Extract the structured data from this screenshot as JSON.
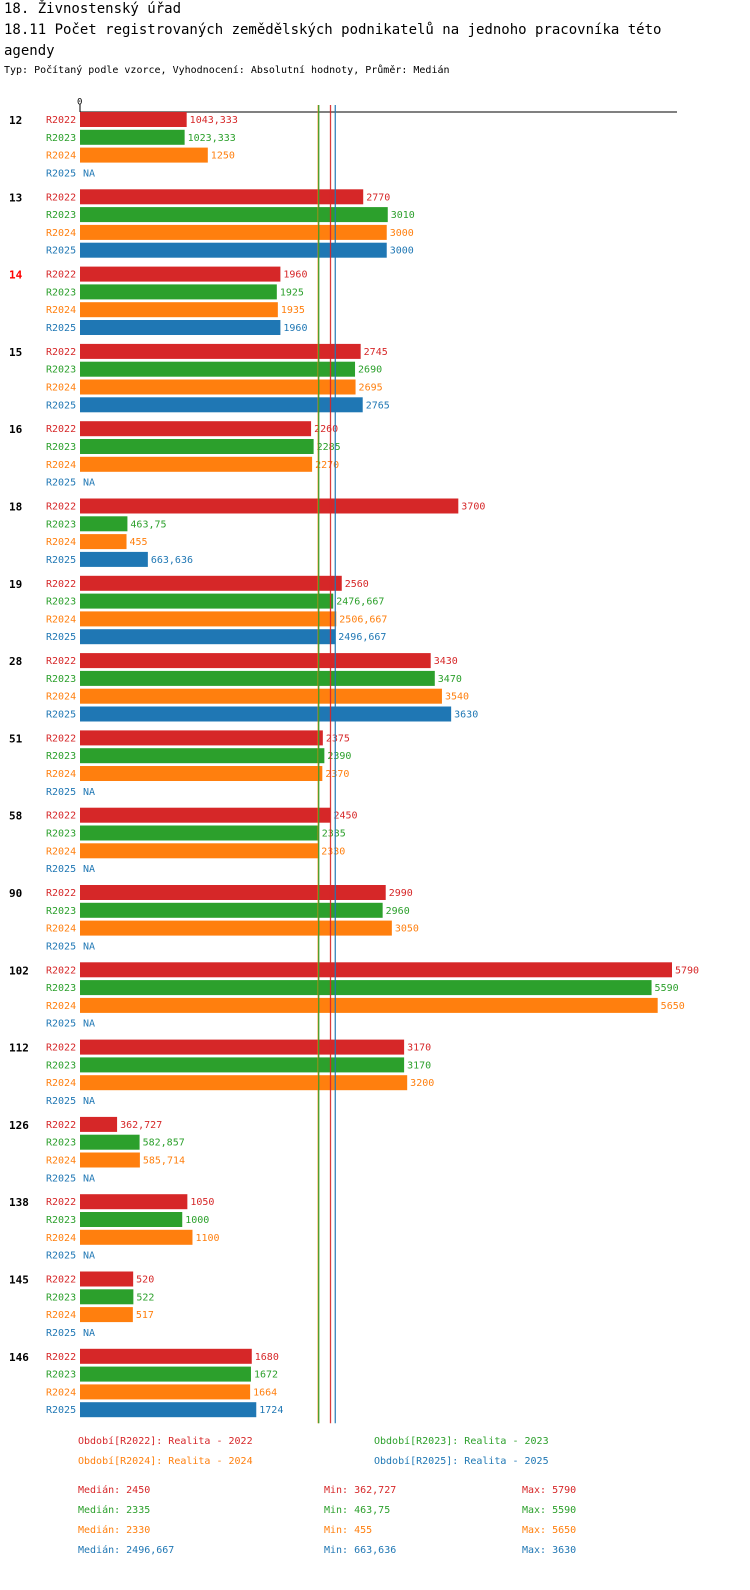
{
  "header": {
    "title_line1": "18. Živnostenský úřad",
    "title_line2": "18.11 Počet  registrovaných zemědělských podnikatelů na jednoho pracovníka  této",
    "title_line3": "agendy",
    "subtitle": "Typ: Počítaný podle vzorce, Vyhodnocení: Absolutní hodnoty, Průměr: Medián"
  },
  "colors": {
    "R2022": "#d62728",
    "R2023": "#2ca02c",
    "R2024": "#ff7f0e",
    "R2025": "#1f77b4",
    "highlight": "#ff0000",
    "text": "#000000"
  },
  "chart_data": {
    "type": "bar",
    "orientation": "horizontal",
    "title": "18.11 Počet  registrovaných zemědělských podnikatelů na jednoho pracovníka  této agendy",
    "axis_zero_label": "0",
    "xlim": [
      0,
      5900
    ],
    "na_label": "NA",
    "highlight_category": "14",
    "categories": [
      "12",
      "13",
      "14",
      "15",
      "16",
      "18",
      "19",
      "28",
      "51",
      "58",
      "90",
      "102",
      "112",
      "126",
      "138",
      "145",
      "146"
    ],
    "series": [
      {
        "name": "R2022",
        "values": [
          1043.333,
          2770,
          1960,
          2745,
          2260,
          3700,
          2560,
          3430,
          2375,
          2450,
          2990,
          5790,
          3170,
          362.727,
          1050,
          520,
          1680
        ],
        "labels": [
          "1043,333",
          "2770",
          "1960",
          "2745",
          "2260",
          "3700",
          "2560",
          "3430",
          "2375",
          "2450",
          "2990",
          "5790",
          "3170",
          "362,727",
          "1050",
          "520",
          "1680"
        ]
      },
      {
        "name": "R2023",
        "values": [
          1023.333,
          3010,
          1925,
          2690,
          2285,
          463.75,
          2476.667,
          3470,
          2390,
          2335,
          2960,
          5590,
          3170,
          582.857,
          1000,
          522,
          1672
        ],
        "labels": [
          "1023,333",
          "3010",
          "1925",
          "2690",
          "2285",
          "463,75",
          "2476,667",
          "3470",
          "2390",
          "2335",
          "2960",
          "5590",
          "3170",
          "582,857",
          "1000",
          "522",
          "1672"
        ]
      },
      {
        "name": "R2024",
        "values": [
          1250,
          3000,
          1935,
          2695,
          2270,
          455,
          2506.667,
          3540,
          2370,
          2330,
          3050,
          5650,
          3200,
          585.714,
          1100,
          517,
          1664
        ],
        "labels": [
          "1250",
          "3000",
          "1935",
          "2695",
          "2270",
          "455",
          "2506,667",
          "3540",
          "2370",
          "2330",
          "3050",
          "5650",
          "3200",
          "585,714",
          "1100",
          "517",
          "1664"
        ]
      },
      {
        "name": "R2025",
        "values": [
          null,
          3000,
          1960,
          2765,
          null,
          663.636,
          2496.667,
          3630,
          null,
          null,
          null,
          null,
          null,
          null,
          null,
          null,
          1724
        ],
        "labels": [
          "NA",
          "3000",
          "1960",
          "2765",
          "NA",
          "663,636",
          "2496,667",
          "3630",
          "NA",
          "NA",
          "NA",
          "NA",
          "NA",
          "NA",
          "NA",
          "NA",
          "1724"
        ]
      }
    ],
    "reference_lines": [
      {
        "series": "R2024",
        "value": 2330
      },
      {
        "series": "R2023",
        "value": 2335
      },
      {
        "series": "R2022",
        "value": 2450
      },
      {
        "series": "R2025",
        "value": 2496.667
      }
    ]
  },
  "legend": {
    "periods": [
      {
        "series": "R2022",
        "text": "Období[R2022]: Realita - 2022"
      },
      {
        "series": "R2023",
        "text": "Období[R2023]: Realita - 2023"
      },
      {
        "series": "R2024",
        "text": "Období[R2024]: Realita - 2024"
      },
      {
        "series": "R2025",
        "text": "Období[R2025]: Realita - 2025"
      }
    ],
    "stats": [
      {
        "series": "R2022",
        "median": "Medián: 2450",
        "min": "Min: 362,727",
        "max": "Max: 5790"
      },
      {
        "series": "R2023",
        "median": "Medián: 2335",
        "min": "Min: 463,75",
        "max": "Max: 5590"
      },
      {
        "series": "R2024",
        "median": "Medián: 2330",
        "min": "Min: 455",
        "max": "Max: 5650"
      },
      {
        "series": "R2025",
        "median": "Medián: 2496,667",
        "min": "Min: 663,636",
        "max": "Max: 3630"
      }
    ]
  }
}
